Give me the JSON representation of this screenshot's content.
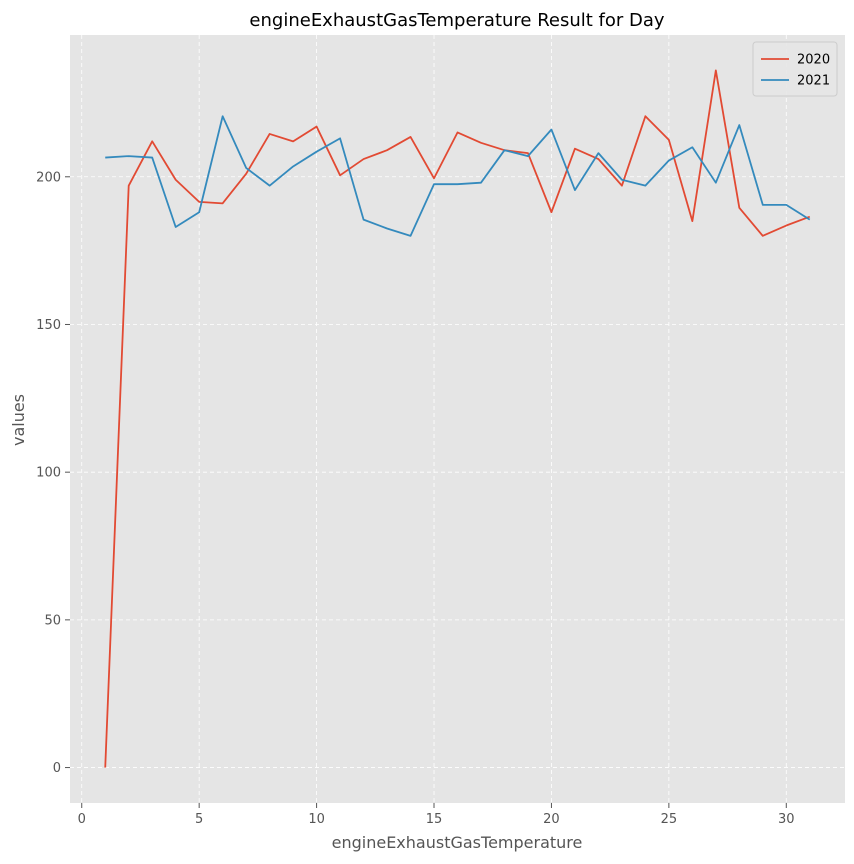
{
  "chart_data": {
    "type": "line",
    "title": "engineExhaustGasTemperature Result for Day",
    "xlabel": "engineExhaustGasTemperature",
    "ylabel": "values",
    "xlim": [
      -0.5,
      32.5
    ],
    "ylim": [
      -12,
      248
    ],
    "xticks": [
      0,
      5,
      10,
      15,
      20,
      25,
      30
    ],
    "yticks": [
      0,
      50,
      100,
      150,
      200
    ],
    "grid": true,
    "legend_position": "top-right",
    "background_color": "#e5e5e5",
    "grid_color": "#ffffff",
    "x": [
      1,
      2,
      3,
      4,
      5,
      6,
      7,
      8,
      9,
      10,
      11,
      12,
      13,
      14,
      15,
      16,
      17,
      18,
      19,
      20,
      21,
      22,
      23,
      24,
      25,
      26,
      27,
      28,
      29,
      30,
      31
    ],
    "series": [
      {
        "name": "2020",
        "color": "#e24a33",
        "values": [
          0,
          197,
          212,
          199,
          191.5,
          191,
          201,
          214.5,
          212,
          217,
          200.5,
          206,
          209,
          213.5,
          199.5,
          215,
          211.5,
          209,
          208,
          188,
          209.5,
          206,
          197,
          220.5,
          212.5,
          185,
          236,
          189.5,
          180,
          183.5,
          186.5
        ]
      },
      {
        "name": "2021",
        "color": "#348abd",
        "values": [
          206.5,
          207,
          206.5,
          183,
          188,
          220.5,
          203,
          197,
          203.5,
          208.5,
          213,
          185.5,
          182.5,
          180,
          197.5,
          197.5,
          198,
          209,
          207,
          216,
          195.5,
          208,
          199,
          197,
          205.5,
          210,
          198,
          217.5,
          190.5,
          190.5,
          185.5
        ]
      }
    ]
  }
}
